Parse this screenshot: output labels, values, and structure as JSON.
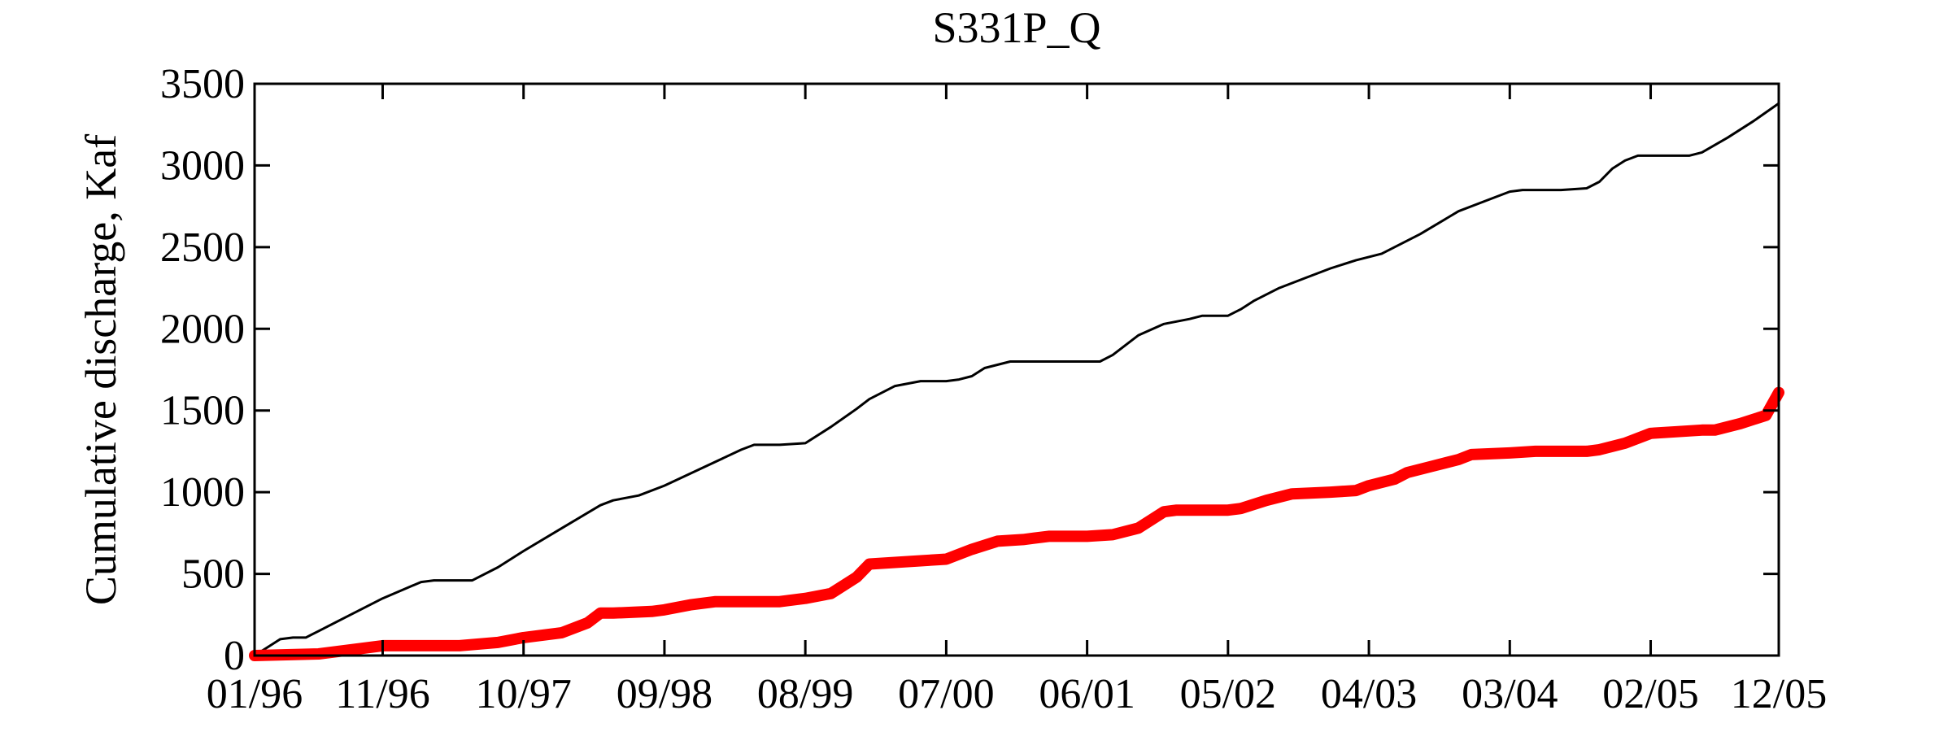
{
  "chart_data": {
    "type": "line",
    "title": "S331P_Q",
    "xlabel": "",
    "ylabel": "Cumulative discharge, Kaf",
    "x_tick_labels": [
      "01/96",
      "11/96",
      "10/97",
      "09/98",
      "08/99",
      "07/00",
      "06/01",
      "05/02",
      "04/03",
      "03/04",
      "02/05",
      "12/05"
    ],
    "y_tick_labels": [
      "0",
      "500",
      "1000",
      "1500",
      "2000",
      "2500",
      "3000",
      "3500"
    ],
    "y_ticks": [
      0,
      500,
      1000,
      1500,
      2000,
      2500,
      3000,
      3500
    ],
    "ylim": [
      0,
      3500
    ],
    "xlim": [
      "01/96",
      "12/05"
    ],
    "grid": false,
    "legend": "none",
    "series": [
      {
        "color": "#000000",
        "x": [
          "01/96",
          "02/96",
          "03/96",
          "04/96",
          "05/96",
          "06/96",
          "08/96",
          "11/96",
          "02/97",
          "03/97",
          "05/97",
          "06/97",
          "08/97",
          "10/97",
          "01/98",
          "04/98",
          "05/98",
          "07/98",
          "09/98",
          "12/98",
          "03/99",
          "04/99",
          "06/99",
          "08/99",
          "10/99",
          "12/99",
          "01/00",
          "03/00",
          "05/00",
          "07/00",
          "08/00",
          "09/00",
          "10/00",
          "12/00",
          "03/01",
          "05/01",
          "06/01",
          "07/01",
          "08/01",
          "10/01",
          "12/01",
          "02/02",
          "03/02",
          "04/02",
          "05/02",
          "06/02",
          "07/02",
          "09/02",
          "11/02",
          "01/03",
          "03/03",
          "04/03",
          "05/03",
          "08/03",
          "11/03",
          "02/04",
          "03/04",
          "04/04",
          "05/04",
          "07/04",
          "09/04",
          "10/04",
          "11/04",
          "12/04",
          "01/05",
          "02/05",
          "03/05",
          "05/05",
          "06/05",
          "08/05",
          "10/05",
          "12/05"
        ],
        "y": [
          0,
          50,
          100,
          110,
          110,
          150,
          230,
          350,
          450,
          460,
          460,
          460,
          540,
          640,
          780,
          920,
          950,
          980,
          1040,
          1150,
          1260,
          1290,
          1290,
          1300,
          1400,
          1510,
          1570,
          1650,
          1680,
          1680,
          1690,
          1710,
          1760,
          1800,
          1800,
          1800,
          1800,
          1800,
          1840,
          1960,
          2030,
          2060,
          2080,
          2080,
          2080,
          2120,
          2170,
          2250,
          2310,
          2370,
          2420,
          2440,
          2460,
          2580,
          2720,
          2810,
          2840,
          2850,
          2850,
          2850,
          2860,
          2900,
          2980,
          3030,
          3060,
          3060,
          3060,
          3060,
          3080,
          3170,
          3270,
          3380
        ]
      },
      {
        "color": "#ff0000",
        "x": [
          "01/96",
          "06/96",
          "09/96",
          "11/96",
          "02/97",
          "05/97",
          "08/97",
          "10/97",
          "01/98",
          "03/98",
          "04/98",
          "05/98",
          "08/98",
          "09/98",
          "11/98",
          "01/99",
          "04/99",
          "06/99",
          "08/99",
          "10/99",
          "12/99",
          "01/00",
          "03/00",
          "05/00",
          "07/00",
          "09/00",
          "11/00",
          "01/01",
          "03/01",
          "05/01",
          "06/01",
          "08/01",
          "10/01",
          "12/01",
          "01/02",
          "03/02",
          "05/02",
          "06/02",
          "08/02",
          "10/02",
          "01/03",
          "03/03",
          "04/03",
          "06/03",
          "07/03",
          "09/03",
          "11/03",
          "12/03",
          "03/04",
          "05/04",
          "07/04",
          "09/04",
          "10/04",
          "11/04",
          "12/04",
          "02/05",
          "04/05",
          "06/05",
          "07/05",
          "09/05",
          "11/05",
          "12/05"
        ],
        "y": [
          0,
          10,
          40,
          60,
          60,
          60,
          80,
          110,
          140,
          200,
          260,
          260,
          270,
          280,
          310,
          330,
          330,
          330,
          350,
          380,
          480,
          560,
          570,
          580,
          590,
          650,
          700,
          710,
          730,
          730,
          730,
          740,
          780,
          880,
          890,
          890,
          890,
          900,
          950,
          990,
          1000,
          1010,
          1040,
          1080,
          1120,
          1160,
          1200,
          1230,
          1240,
          1250,
          1250,
          1250,
          1260,
          1280,
          1300,
          1360,
          1370,
          1380,
          1380,
          1420,
          1470,
          1610
        ]
      }
    ]
  }
}
